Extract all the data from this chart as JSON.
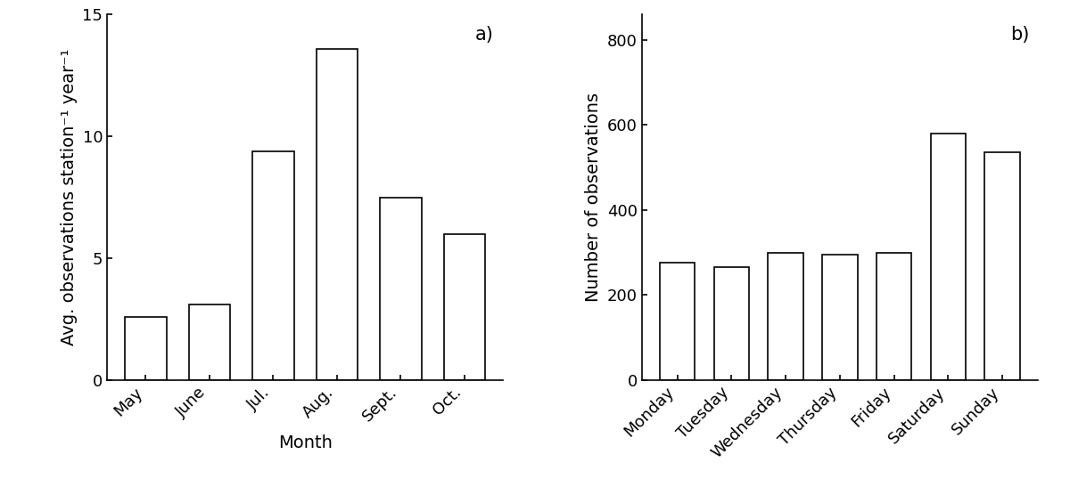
{
  "panel_a": {
    "categories": [
      "May",
      "June",
      "Jul.",
      "Aug.",
      "Sept.",
      "Oct."
    ],
    "values": [
      2.6,
      3.1,
      9.4,
      13.6,
      7.5,
      6.0
    ],
    "xlabel": "Month",
    "ylabel": "Avg. observations station⁻¹ year⁻¹",
    "ylim": [
      0,
      15
    ],
    "yticks": [
      0,
      5,
      10,
      15
    ],
    "label": "a)"
  },
  "panel_b": {
    "categories": [
      "Monday",
      "Tuesday",
      "Wednesday",
      "Thursday",
      "Friday",
      "Saturday",
      "Sunday"
    ],
    "values": [
      275,
      265,
      300,
      295,
      300,
      580,
      535
    ],
    "xlabel": "",
    "ylabel": "Number of observations",
    "ylim": [
      0,
      860
    ],
    "yticks": [
      0,
      200,
      400,
      600,
      800
    ],
    "label": "b)"
  },
  "bar_color": "white",
  "bar_edgecolor": "black",
  "bar_linewidth": 1.2,
  "tick_labelsize": 13,
  "axis_labelsize": 14,
  "label_fontsize": 15,
  "figure_facecolor": "white",
  "axes_facecolor": "white"
}
